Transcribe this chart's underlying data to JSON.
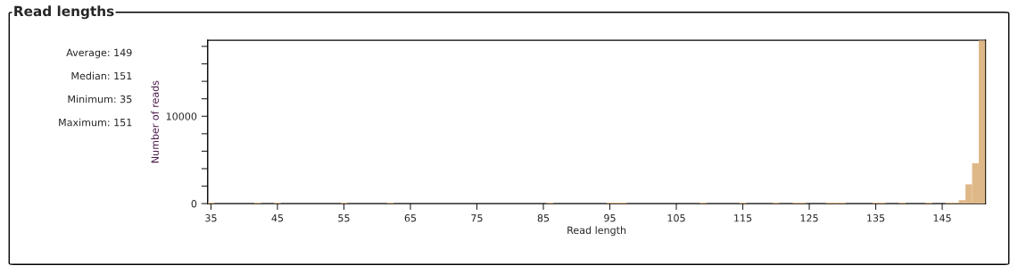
{
  "chart_data": {
    "type": "histogram",
    "title": "Read lengths",
    "xlabel": "Read length",
    "ylabel": "Number of reads",
    "annotations": [
      "Average: 149",
      "Median: 151",
      "Minimum: 35",
      "Maximum: 151"
    ],
    "color": "#deb887",
    "bins": [
      34.5,
      35.5,
      36.5,
      37.5,
      38.5,
      39.5,
      40.5,
      41.5,
      42.5,
      43.5,
      44.5,
      45.5,
      46.5,
      47.5,
      48.5,
      49.5,
      50.5,
      51.5,
      52.5,
      53.5,
      54.5,
      55.5,
      56.5,
      57.5,
      58.5,
      59.5,
      60.5,
      61.5,
      62.5,
      63.5,
      64.5,
      65.5,
      66.5,
      67.5,
      68.5,
      69.5,
      70.5,
      71.5,
      72.5,
      73.5,
      74.5,
      75.5,
      76.5,
      77.5,
      78.5,
      79.5,
      80.5,
      81.5,
      82.5,
      83.5,
      84.5,
      85.5,
      86.5,
      87.5,
      88.5,
      89.5,
      90.5,
      91.5,
      92.5,
      93.5,
      94.5,
      95.5,
      96.5,
      97.5,
      98.5,
      99.5,
      100.5,
      101.5,
      102.5,
      103.5,
      104.5,
      105.5,
      106.5,
      107.5,
      108.5,
      109.5,
      110.5,
      111.5,
      112.5,
      113.5,
      114.5,
      115.5,
      116.5,
      117.5,
      118.5,
      119.5,
      120.5,
      121.5,
      122.5,
      123.5,
      124.5,
      125.5,
      126.5,
      127.5,
      128.5,
      129.5,
      130.5,
      131.5,
      132.5,
      133.5,
      134.5,
      135.5,
      136.5,
      137.5,
      138.5,
      139.5,
      140.5,
      141.5,
      142.5,
      143.5,
      144.5,
      145.5,
      146.5,
      147.5,
      148.5,
      149.5,
      150.5,
      151.5
    ],
    "values": [
      100,
      0,
      0,
      0,
      0,
      0,
      0,
      100,
      0,
      0,
      100,
      0,
      0,
      0,
      0,
      0,
      0,
      0,
      0,
      0,
      100,
      0,
      0,
      0,
      0,
      0,
      0,
      100,
      0,
      0,
      0,
      0,
      0,
      0,
      0,
      0,
      0,
      0,
      0,
      0,
      0,
      0,
      0,
      0,
      0,
      0,
      0,
      0,
      0,
      0,
      0,
      100,
      0,
      0,
      0,
      0,
      0,
      0,
      0,
      0,
      100,
      100,
      100,
      0,
      0,
      0,
      0,
      0,
      0,
      0,
      0,
      0,
      0,
      0,
      100,
      0,
      0,
      0,
      0,
      0,
      100,
      0,
      0,
      0,
      0,
      100,
      0,
      0,
      100,
      100,
      0,
      0,
      0,
      100,
      100,
      100,
      0,
      0,
      0,
      0,
      100,
      100,
      0,
      0,
      100,
      0,
      0,
      0,
      100,
      0,
      0,
      100,
      100,
      400,
      2200,
      4600,
      18700
    ],
    "xlim": [
      34.5,
      151.5
    ],
    "xticks": [
      35,
      45,
      55,
      65,
      75,
      85,
      95,
      105,
      115,
      125,
      135,
      145
    ],
    "ylim": [
      0,
      18700
    ],
    "yticks": [
      0,
      {
        "value": 2000,
        "label": null
      },
      {
        "value": 4000,
        "label": null
      },
      {
        "value": 6000,
        "label": null
      },
      {
        "value": 8000,
        "label": null
      },
      10000,
      {
        "value": 12000,
        "label": null
      },
      {
        "value": 14000,
        "label": null
      },
      {
        "value": 16000,
        "label": null
      },
      {
        "value": 18000,
        "label": null
      }
    ],
    "grid": false,
    "legend": false
  }
}
